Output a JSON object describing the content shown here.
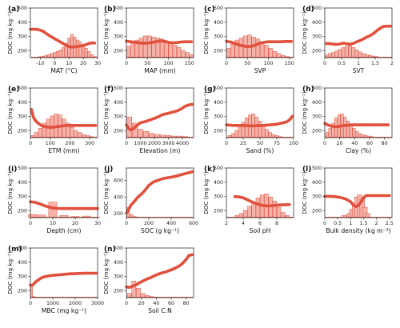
{
  "style": {
    "line_color": "#e0503c",
    "bar_fill": "#f3b3ab",
    "bar_stroke": "#e0503c",
    "axis_color": "#333333",
    "baseline_color": "#e0503c"
  },
  "chart_data": [
    {
      "type": "line",
      "panel": "(a)",
      "xlabel": "MAT (°C)",
      "ylabel": "DOC (mg kg⁻¹)",
      "xlim": [
        -17,
        30
      ],
      "ylim": [
        150,
        500
      ],
      "xticks": [
        -10,
        0,
        10,
        20,
        30
      ],
      "yticks": [
        200,
        300,
        400,
        500
      ],
      "x": [
        -17,
        -14,
        -12,
        -10,
        -8,
        -6,
        -4,
        -2,
        0,
        2,
        4,
        6,
        8,
        10,
        12,
        14,
        16,
        18,
        20,
        22,
        24,
        26,
        28
      ],
      "y": [
        350,
        350,
        349,
        343,
        335,
        320,
        307,
        295,
        283,
        272,
        260,
        248,
        237,
        228,
        224,
        226,
        229,
        232,
        236,
        242,
        250,
        254,
        253
      ],
      "hist_bins": [
        -16,
        -14,
        -12,
        -10,
        -8,
        -6,
        -4,
        -2,
        0,
        2,
        4,
        6,
        8,
        10,
        12,
        14,
        16,
        18,
        20,
        22,
        24,
        26,
        28
      ],
      "hist": [
        0,
        1,
        1,
        2,
        3,
        4,
        6,
        8,
        10,
        12,
        15,
        20,
        28,
        38,
        45,
        40,
        34,
        30,
        25,
        18,
        12,
        6,
        2
      ],
      "hist_max": 50
    },
    {
      "type": "line",
      "panel": "(b)",
      "xlabel": "MAP (mm)",
      "ylabel": "DOC (mg kg⁻¹)",
      "xlim": [
        0,
        160
      ],
      "ylim": [
        150,
        500
      ],
      "xticks": [
        0,
        50,
        100,
        150
      ],
      "yticks": [
        200,
        300,
        400,
        500
      ],
      "x": [
        0,
        10,
        20,
        30,
        40,
        50,
        60,
        70,
        80,
        90,
        100,
        110,
        120,
        130,
        140,
        150,
        155
      ],
      "y": [
        265,
        262,
        258,
        254,
        252,
        252,
        256,
        262,
        268,
        265,
        258,
        254,
        256,
        260,
        262,
        262,
        262
      ],
      "hist_bins": [
        5,
        15,
        25,
        35,
        45,
        55,
        65,
        75,
        85,
        95,
        105,
        115,
        125,
        135,
        145,
        155
      ],
      "hist": [
        22,
        30,
        34,
        38,
        42,
        42,
        40,
        38,
        36,
        32,
        28,
        24,
        20,
        14,
        10,
        6
      ],
      "hist_max": 50
    },
    {
      "type": "line",
      "panel": "(c)",
      "xlabel": "SVP",
      "ylabel": "DOC (mg kg⁻¹)",
      "xlim": [
        0,
        160
      ],
      "ylim": [
        150,
        500
      ],
      "xticks": [
        0,
        50,
        100,
        150
      ],
      "yticks": [
        200,
        300,
        400,
        500
      ],
      "x": [
        0,
        10,
        20,
        30,
        40,
        50,
        60,
        70,
        80,
        90,
        100,
        110,
        120,
        130,
        140,
        150,
        155
      ],
      "y": [
        265,
        260,
        250,
        240,
        232,
        228,
        230,
        240,
        252,
        258,
        262,
        262,
        262,
        262,
        264,
        264,
        264
      ],
      "hist_bins": [
        5,
        15,
        25,
        35,
        45,
        55,
        65,
        75,
        85,
        95,
        105,
        115,
        125,
        135,
        145,
        155
      ],
      "hist": [
        18,
        26,
        34,
        38,
        42,
        44,
        40,
        36,
        30,
        24,
        18,
        12,
        8,
        4,
        2,
        1
      ],
      "hist_max": 50
    },
    {
      "type": "line",
      "panel": "(d)",
      "xlabel": "SVT",
      "ylabel": "DOC (mg kg⁻¹)",
      "xlim": [
        0,
        2.0
      ],
      "ylim": [
        150,
        500
      ],
      "xticks": [
        0.0,
        0.5,
        1.0,
        1.5,
        2.0
      ],
      "yticks": [
        200,
        300,
        400,
        500
      ],
      "x": [
        0.05,
        0.15,
        0.25,
        0.35,
        0.45,
        0.55,
        0.65,
        0.75,
        0.85,
        0.95,
        1.05,
        1.15,
        1.25,
        1.35,
        1.45,
        1.55,
        1.65,
        1.75,
        1.85,
        1.95
      ],
      "y": [
        250,
        248,
        245,
        243,
        246,
        252,
        248,
        244,
        250,
        262,
        270,
        282,
        295,
        305,
        320,
        340,
        358,
        370,
        372,
        372
      ],
      "hist_bins": [
        0.05,
        0.15,
        0.25,
        0.35,
        0.45,
        0.55,
        0.65,
        0.75,
        0.85,
        0.95,
        1.05,
        1.15,
        1.25,
        1.35,
        1.45,
        1.55,
        1.65,
        1.75,
        1.85,
        1.95
      ],
      "hist": [
        10,
        16,
        20,
        26,
        32,
        40,
        44,
        46,
        40,
        30,
        22,
        16,
        12,
        8,
        6,
        4,
        2,
        2,
        1,
        1
      ],
      "hist_max": 100
    },
    {
      "type": "line",
      "panel": "(e)",
      "xlabel": "ETM (mm)",
      "ylabel": "DOC (mg kg⁻¹)",
      "xlim": [
        0,
        340
      ],
      "ylim": [
        150,
        500
      ],
      "xticks": [
        0,
        100,
        200,
        300
      ],
      "yticks": [
        200,
        300,
        400,
        500
      ],
      "x": [
        5,
        15,
        25,
        40,
        60,
        80,
        100,
        120,
        140,
        160,
        180,
        200,
        220,
        240,
        260,
        280,
        300,
        330
      ],
      "y": [
        350,
        295,
        270,
        250,
        232,
        225,
        222,
        224,
        228,
        232,
        235,
        236,
        236,
        236,
        236,
        236,
        236,
        236
      ],
      "hist_bins": [
        10,
        30,
        50,
        70,
        90,
        110,
        130,
        150,
        170,
        190,
        210,
        230,
        250,
        270,
        290,
        310,
        330
      ],
      "hist": [
        4,
        10,
        18,
        28,
        36,
        42,
        46,
        44,
        36,
        28,
        20,
        14,
        10,
        6,
        4,
        2,
        1
      ],
      "hist_max": 50
    },
    {
      "type": "line",
      "panel": "(f)",
      "xlabel": "Elevation (m)",
      "ylabel": "DOC (mg kg⁻¹)",
      "xlim": [
        0,
        4800
      ],
      "ylim": [
        150,
        500
      ],
      "xticks": [
        0,
        1000,
        2000,
        3000,
        4000
      ],
      "yticks": [
        200,
        300,
        400,
        500
      ],
      "x": [
        0,
        150,
        300,
        500,
        700,
        1000,
        1300,
        1600,
        2000,
        2300,
        2600,
        3000,
        3300,
        3600,
        3900,
        4200,
        4500,
        4700
      ],
      "y": [
        240,
        215,
        205,
        212,
        232,
        255,
        262,
        272,
        286,
        298,
        312,
        322,
        330,
        338,
        352,
        372,
        382,
        384
      ],
      "hist_bins": [
        200,
        600,
        1000,
        1400,
        1800,
        2200,
        2600,
        3000,
        3400,
        3800,
        4200,
        4600
      ],
      "hist": [
        40,
        28,
        16,
        12,
        8,
        6,
        5,
        4,
        3,
        3,
        2,
        1
      ],
      "hist_max": 50
    },
    {
      "type": "line",
      "panel": "(g)",
      "xlabel": "Sand (%)",
      "ylabel": "DOC (mg kg⁻¹)",
      "xlim": [
        0,
        100
      ],
      "ylim": [
        150,
        500
      ],
      "xticks": [
        0,
        25,
        50,
        75,
        100
      ],
      "yticks": [
        200,
        300,
        400,
        500
      ],
      "x": [
        0,
        5,
        10,
        15,
        20,
        25,
        30,
        35,
        40,
        45,
        50,
        55,
        60,
        65,
        70,
        75,
        80,
        85,
        90,
        95,
        98
      ],
      "y": [
        240,
        238,
        236,
        236,
        236,
        236,
        234,
        233,
        233,
        234,
        235,
        236,
        238,
        240,
        242,
        245,
        250,
        255,
        262,
        280,
        300
      ],
      "hist_bins": [
        5,
        10,
        15,
        20,
        25,
        30,
        35,
        40,
        45,
        50,
        55,
        60,
        65,
        70,
        75,
        80,
        85,
        90,
        95
      ],
      "hist": [
        4,
        8,
        14,
        22,
        30,
        38,
        44,
        46,
        40,
        32,
        24,
        16,
        10,
        6,
        4,
        2,
        1,
        1,
        1
      ],
      "hist_max": 50
    },
    {
      "type": "line",
      "panel": "(h)",
      "xlabel": "Clay (%)",
      "ylabel": "DOC (mg kg⁻¹)",
      "xlim": [
        0,
        90
      ],
      "ylim": [
        150,
        500
      ],
      "xticks": [
        0,
        20,
        40,
        60,
        80
      ],
      "yticks": [
        200,
        300,
        400,
        500
      ],
      "x": [
        0,
        4,
        8,
        12,
        16,
        20,
        24,
        28,
        32,
        36,
        40,
        45,
        50,
        55,
        60,
        65,
        70,
        75,
        80,
        85
      ],
      "y": [
        250,
        240,
        232,
        228,
        226,
        230,
        234,
        236,
        238,
        240,
        240,
        240,
        240,
        240,
        240,
        240,
        240,
        240,
        240,
        240
      ],
      "hist_bins": [
        3,
        7,
        11,
        15,
        19,
        23,
        27,
        31,
        35,
        39,
        43,
        47,
        51,
        55,
        59,
        63,
        67,
        71,
        75
      ],
      "hist": [
        10,
        18,
        28,
        38,
        44,
        46,
        40,
        32,
        24,
        18,
        12,
        8,
        6,
        4,
        3,
        2,
        1,
        1,
        1
      ],
      "hist_max": 50
    },
    {
      "type": "line",
      "panel": "(i)",
      "xlabel": "Depth (cm)",
      "ylabel": "DOC (mg kg⁻¹)",
      "xlim": [
        0,
        30
      ],
      "ylim": [
        150,
        500
      ],
      "xticks": [
        0,
        10,
        20,
        30
      ],
      "yticks": [
        200,
        300,
        400,
        500
      ],
      "x": [
        0,
        2,
        4,
        6,
        8,
        10,
        12,
        14,
        16,
        18,
        20,
        22,
        24,
        26,
        28,
        30
      ],
      "y": [
        262,
        258,
        248,
        236,
        225,
        218,
        215,
        214,
        214,
        214,
        214,
        214,
        214,
        214,
        214,
        214
      ],
      "hist_bins": [
        1,
        5,
        10,
        15,
        20,
        25,
        29
      ],
      "hist": [
        12,
        10,
        60,
        8,
        4,
        6,
        2
      ],
      "hist_max": 100
    },
    {
      "type": "line",
      "panel": "(j)",
      "xlabel": "SOC (g kg⁻¹)",
      "ylabel": "DOC (mg kg⁻¹)",
      "xlim": [
        0,
        600
      ],
      "ylim": [
        150,
        750
      ],
      "xticks": [
        0,
        200,
        400,
        600
      ],
      "yticks": [
        200,
        400,
        600
      ],
      "x": [
        5,
        20,
        40,
        60,
        80,
        100,
        130,
        160,
        200,
        240,
        280,
        320,
        360,
        400,
        440,
        480,
        520,
        560,
        590
      ],
      "y": [
        210,
        250,
        300,
        330,
        360,
        395,
        430,
        470,
        540,
        580,
        600,
        620,
        630,
        640,
        650,
        665,
        680,
        695,
        705
      ],
      "hist_bins": [
        15,
        45,
        75,
        105
      ],
      "hist": [
        40,
        12,
        4,
        2
      ],
      "hist_max": 100
    },
    {
      "type": "line",
      "panel": "(k)",
      "xlabel": "Soil pH",
      "ylabel": "DOC (mg kg⁻¹)",
      "xlim": [
        2,
        10
      ],
      "ylim": [
        150,
        500
      ],
      "xticks": [
        2,
        4,
        6,
        8
      ],
      "yticks": [
        200,
        300,
        400,
        500
      ],
      "x": [
        3.0,
        3.5,
        4.0,
        4.5,
        5.0,
        5.5,
        6.0,
        6.5,
        7.0,
        7.5,
        8.0,
        8.5,
        9.0,
        9.5
      ],
      "y": [
        298,
        296,
        290,
        276,
        262,
        250,
        240,
        234,
        232,
        234,
        238,
        240,
        241,
        242
      ],
      "hist_bins": [
        3.25,
        3.75,
        4.25,
        4.75,
        5.25,
        5.75,
        6.25,
        6.75,
        7.25,
        7.75,
        8.25,
        8.75,
        9.25
      ],
      "hist": [
        4,
        8,
        14,
        22,
        30,
        38,
        44,
        46,
        40,
        32,
        20,
        10,
        4
      ],
      "hist_max": 50
    },
    {
      "type": "line",
      "panel": "(l)",
      "xlabel": "Bulk density (kg m⁻³)",
      "ylabel": "DOC (mg kg⁻¹)",
      "xlim": [
        0,
        2.6
      ],
      "ylim": [
        150,
        500
      ],
      "xticks": [
        0.0,
        0.5,
        1.0,
        1.5,
        2.0,
        2.5
      ],
      "yticks": [
        200,
        300,
        400,
        500
      ],
      "x": [
        0.0,
        0.2,
        0.4,
        0.6,
        0.8,
        1.0,
        1.1,
        1.2,
        1.3,
        1.4,
        1.5,
        1.6,
        1.8,
        2.0,
        2.2,
        2.4,
        2.5
      ],
      "y": [
        300,
        300,
        298,
        292,
        282,
        262,
        240,
        228,
        236,
        260,
        290,
        305,
        305,
        305,
        305,
        305,
        305
      ],
      "hist_bins": [
        0.75,
        0.95,
        1.05,
        1.15,
        1.25,
        1.35,
        1.45,
        1.55,
        1.65
      ],
      "hist": [
        4,
        8,
        16,
        28,
        40,
        44,
        36,
        20,
        8
      ],
      "hist_max": 50
    },
    {
      "type": "line",
      "panel": "(m)",
      "xlabel": "MBC (mg kg⁻¹)",
      "ylabel": "DOC (mg kg⁻¹)",
      "xlim": [
        0,
        3000
      ],
      "ylim": [
        150,
        500
      ],
      "xticks": [
        0,
        1000,
        2000,
        3000
      ],
      "yticks": [
        200,
        300,
        400,
        500
      ],
      "x": [
        0,
        50,
        100,
        150,
        200,
        300,
        400,
        500,
        700,
        900,
        1200,
        1500,
        1800,
        2100,
        2400,
        2700,
        2950
      ],
      "y": [
        240,
        236,
        238,
        246,
        256,
        268,
        280,
        290,
        300,
        305,
        310,
        314,
        318,
        320,
        322,
        322,
        322
      ],
      "hist_bins": [
        50,
        150,
        250
      ],
      "hist": [
        44,
        4,
        1
      ],
      "hist_max": 100
    },
    {
      "type": "line",
      "panel": "(n)",
      "xlabel": "Soil C:N",
      "ylabel": "DOC (mg kg⁻¹)",
      "xlim": [
        0,
        90
      ],
      "ylim": [
        150,
        500
      ],
      "xticks": [
        0,
        20,
        40,
        60,
        80
      ],
      "yticks": [
        200,
        300,
        400,
        500
      ],
      "x": [
        0,
        4,
        8,
        12,
        16,
        20,
        24,
        28,
        32,
        36,
        40,
        44,
        48,
        52,
        56,
        60,
        64,
        68,
        72,
        76,
        80,
        84,
        88
      ],
      "y": [
        225,
        222,
        230,
        238,
        250,
        262,
        272,
        282,
        290,
        300,
        310,
        318,
        325,
        330,
        338,
        346,
        355,
        365,
        378,
        395,
        420,
        448,
        452
      ],
      "hist_bins": [
        4,
        10,
        16,
        22,
        28,
        34,
        40,
        46
      ],
      "hist": [
        8,
        32,
        18,
        8,
        4,
        2,
        1,
        1
      ],
      "hist_max": 50
    }
  ]
}
